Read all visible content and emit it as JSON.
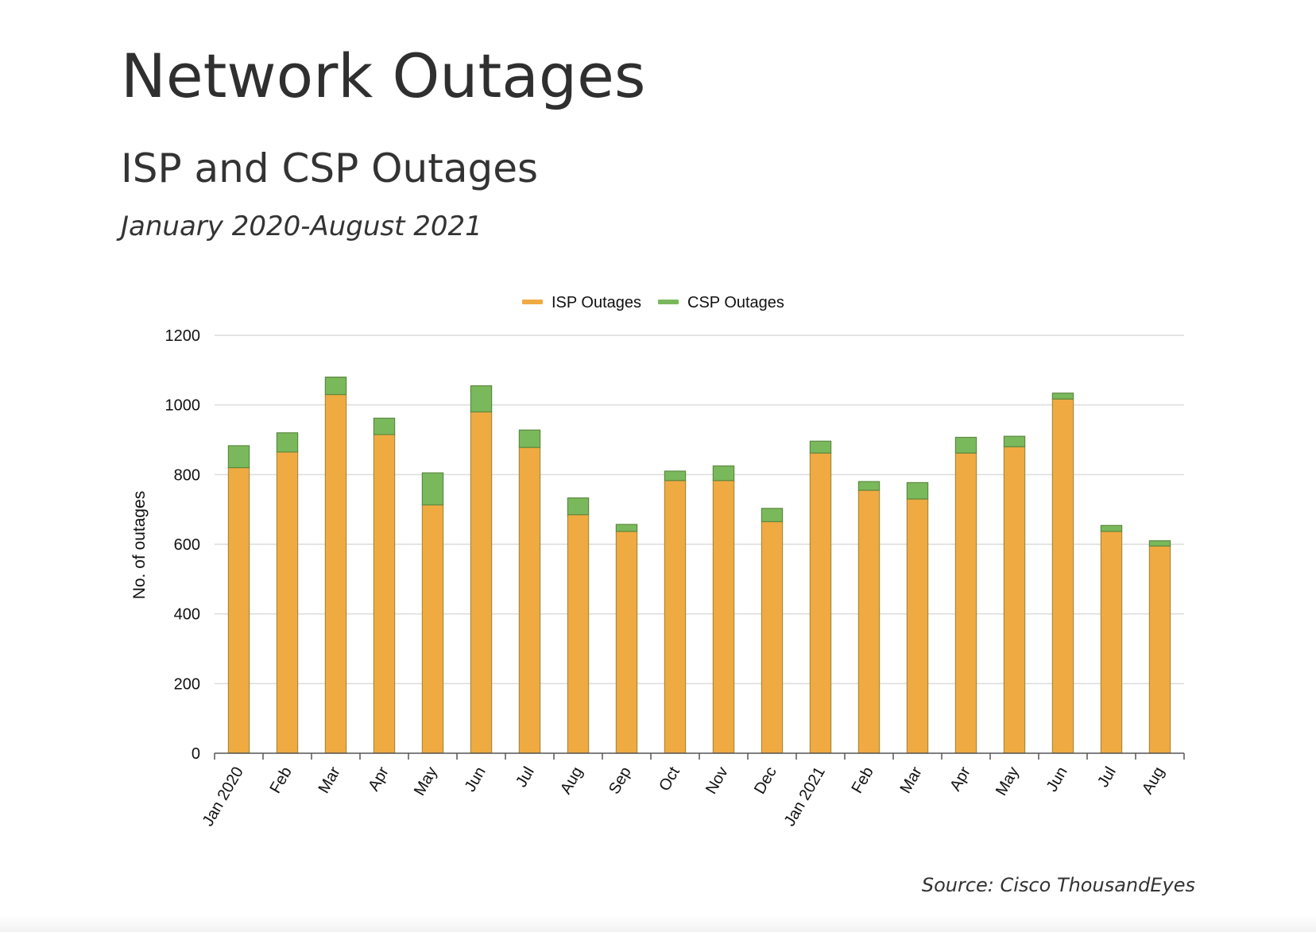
{
  "header": {
    "title": "Network Outages",
    "subtitle": "ISP and CSP Outages",
    "date_range": "January 2020-August 2021"
  },
  "footer": {
    "source": "Source: Cisco ThousandEyes"
  },
  "chart_data": {
    "type": "bar",
    "stacked": true,
    "title": "",
    "xlabel": "",
    "ylabel": "No. of outages",
    "ylim": [
      0,
      1200
    ],
    "yticks": [
      0,
      200,
      400,
      600,
      800,
      1000,
      1200
    ],
    "grid": true,
    "legend_position": "top-center",
    "categories": [
      "Jan 2020",
      "Feb",
      "Mar",
      "Apr",
      "May",
      "Jun",
      "Jul",
      "Aug",
      "Sep",
      "Oct",
      "Nov",
      "Dec",
      "Jan 2021",
      "Feb",
      "Mar",
      "Apr",
      "May",
      "Jun",
      "Jul",
      "Aug"
    ],
    "series": [
      {
        "name": "ISP Outages",
        "color": "#f0aa42",
        "values": [
          820,
          865,
          1030,
          915,
          713,
          980,
          878,
          685,
          637,
          783,
          783,
          665,
          862,
          755,
          730,
          862,
          880,
          1017,
          637,
          595
        ]
      },
      {
        "name": "CSP Outages",
        "color": "#7ab85c",
        "values": [
          63,
          55,
          50,
          47,
          92,
          75,
          50,
          48,
          20,
          27,
          42,
          38,
          34,
          25,
          47,
          45,
          30,
          17,
          17,
          15
        ]
      }
    ]
  }
}
